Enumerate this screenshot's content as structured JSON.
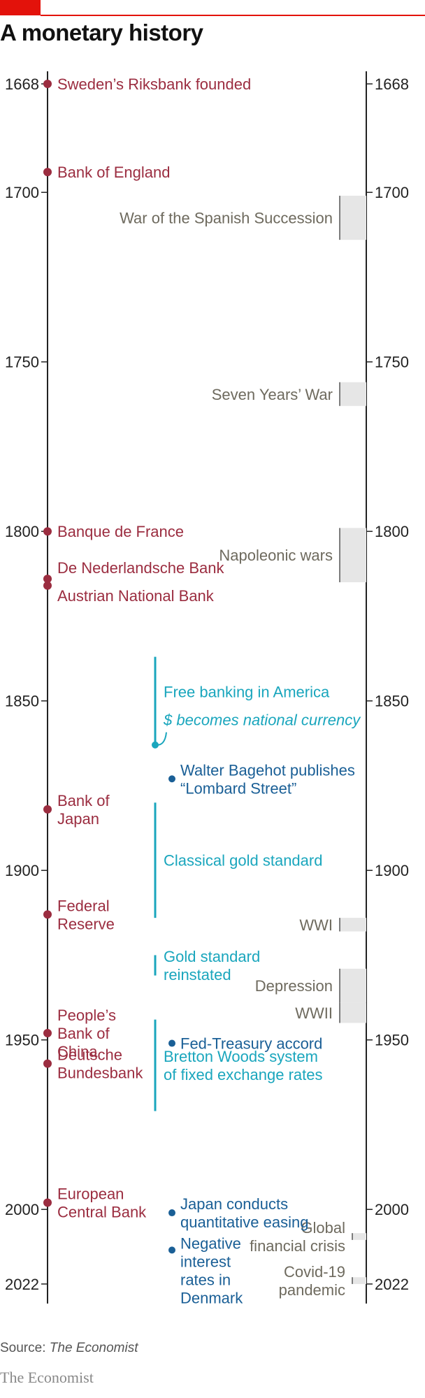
{
  "title": "A monetary history",
  "source_label": "Source:",
  "source_name": "The Economist",
  "brand": "The Economist",
  "colors": {
    "accent": "#e3120b",
    "bank": "#9b2d40",
    "period": "#1aa6bd",
    "event": "#1a5f96",
    "war_text": "#6e6a5e",
    "war_band": "#e6e6e6"
  },
  "chart_data": {
    "type": "timeline",
    "axis": {
      "min": 1668,
      "max": 2022,
      "ticks": [
        1668,
        1700,
        1750,
        1800,
        1850,
        1900,
        1950,
        2000,
        2022
      ]
    },
    "central_banks": [
      {
        "year": 1668,
        "lines": [
          "Sweden’s Riksbank founded"
        ]
      },
      {
        "year": 1694,
        "lines": [
          "Bank of England"
        ]
      },
      {
        "year": 1800,
        "lines": [
          "Banque de France"
        ]
      },
      {
        "year": 1814,
        "lines": [
          "De Nederlandsche Bank"
        ]
      },
      {
        "year": 1816,
        "lines": [
          "Austrian National Bank"
        ]
      },
      {
        "year": 1882,
        "lines": [
          "Bank of",
          "Japan"
        ]
      },
      {
        "year": 1913,
        "lines": [
          "Federal",
          "Reserve"
        ]
      },
      {
        "year": 1948,
        "lines": [
          "People’s",
          "Bank of",
          "China"
        ]
      },
      {
        "year": 1957,
        "lines": [
          "Deutsche",
          "Bundesbank"
        ]
      },
      {
        "year": 1998,
        "lines": [
          "European",
          "Central Bank"
        ]
      }
    ],
    "periods": [
      {
        "start": 1837,
        "end": 1863,
        "lines": [
          "Free banking in America"
        ],
        "note": "$ becomes national currency"
      },
      {
        "start": 1880,
        "end": 1914,
        "lines": [
          "Classical gold standard"
        ]
      },
      {
        "start": 1925,
        "end": 1931,
        "lines": [
          "Gold standard",
          "reinstated"
        ]
      },
      {
        "start": 1944,
        "end": 1971,
        "lines": [
          "Bretton Woods system",
          "of fixed exchange rates"
        ]
      }
    ],
    "events": [
      {
        "year": 1873,
        "lines": [
          "Walter Bagehot publishes",
          "“Lombard Street”"
        ]
      },
      {
        "year": 1951,
        "lines": [
          "Fed-Treasury accord"
        ]
      },
      {
        "year": 2001,
        "lines": [
          "Japan conducts",
          "quantitative easing"
        ]
      },
      {
        "year": 2012,
        "lines": [
          "Negative",
          "interest",
          "rates in",
          "Denmark"
        ]
      }
    ],
    "wars": [
      {
        "start": 1701,
        "end": 1714,
        "lines": [
          "War of the Spanish Succession"
        ]
      },
      {
        "start": 1756,
        "end": 1763,
        "lines": [
          "Seven Years’ War"
        ]
      },
      {
        "start": 1799,
        "end": 1815,
        "lines": [
          "Napoleonic wars"
        ]
      },
      {
        "start": 1914,
        "end": 1918,
        "lines": [
          "WWI"
        ]
      },
      {
        "start": 1929,
        "end": 1939,
        "lines": [
          "Depression"
        ]
      },
      {
        "start": 1939,
        "end": 1945,
        "lines": [
          "WWII"
        ]
      },
      {
        "start": 2007,
        "end": 2009,
        "lines": [
          "Global",
          "financial crisis"
        ]
      },
      {
        "start": 2020,
        "end": 2022,
        "lines": [
          "Covid-19",
          "pandemic"
        ]
      }
    ]
  }
}
